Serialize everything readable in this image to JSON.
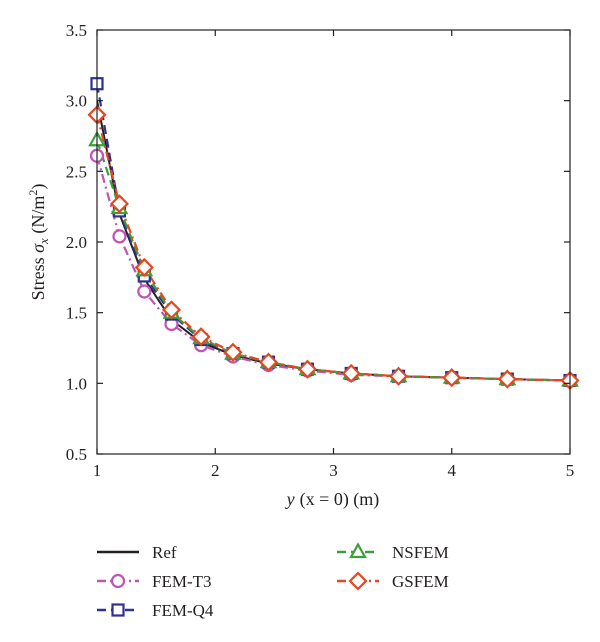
{
  "chart_data": {
    "type": "line",
    "xlabel": {
      "var": "y",
      "paren": "(x = 0) (m)"
    },
    "ylabel": {
      "pre": "Stress ",
      "sigma": "σ",
      "sub": "x",
      "unit_open": " (N/m",
      "sup": "2",
      "unit_close": ")"
    },
    "xlim": [
      1,
      5
    ],
    "ylim": [
      0.5,
      3.5
    ],
    "x_ticks": [
      1,
      2,
      3,
      4,
      5
    ],
    "y_ticks": [
      0.5,
      1.0,
      1.5,
      2.0,
      2.5,
      3.0,
      3.5
    ],
    "x_tick_labels": [
      "1",
      "2",
      "3",
      "4",
      "5"
    ],
    "y_tick_labels": [
      "0.5",
      "1.0",
      "1.5",
      "2.0",
      "2.5",
      "3.0",
      "3.5"
    ],
    "grid": false,
    "legend_position": "below",
    "x": [
      1.0,
      1.19,
      1.4,
      1.63,
      1.88,
      2.15,
      2.45,
      2.78,
      3.15,
      3.55,
      4.0,
      4.47,
      5.0
    ],
    "series": [
      {
        "name": "Ref",
        "color": "#231f20",
        "dash": "solid",
        "marker": "none",
        "values": [
          3.0,
          2.2,
          1.74,
          1.45,
          1.29,
          1.2,
          1.14,
          1.1,
          1.07,
          1.05,
          1.04,
          1.03,
          1.02
        ]
      },
      {
        "name": "FEM-T3",
        "color": "#c054b4",
        "dash": "dashdot",
        "marker": "circle",
        "values": [
          2.61,
          2.04,
          1.65,
          1.42,
          1.27,
          1.19,
          1.13,
          1.09,
          1.06,
          1.05,
          1.04,
          1.03,
          1.02
        ]
      },
      {
        "name": "FEM-Q4",
        "color": "#2e3192",
        "dash": "dash",
        "marker": "square",
        "values": [
          3.12,
          2.22,
          1.76,
          1.49,
          1.31,
          1.21,
          1.15,
          1.1,
          1.07,
          1.05,
          1.04,
          1.03,
          1.02
        ]
      },
      {
        "name": "NSFEM",
        "color": "#3aa03c",
        "dash": "dash",
        "marker": "triangle",
        "values": [
          2.72,
          2.24,
          1.8,
          1.5,
          1.32,
          1.21,
          1.15,
          1.1,
          1.07,
          1.05,
          1.04,
          1.03,
          1.02
        ]
      },
      {
        "name": "GSFEM",
        "color": "#e8461c",
        "dash": "dashdot",
        "marker": "diamond",
        "values": [
          2.9,
          2.27,
          1.82,
          1.52,
          1.33,
          1.22,
          1.15,
          1.1,
          1.07,
          1.05,
          1.04,
          1.03,
          1.02
        ]
      }
    ],
    "legend": [
      {
        "label": "Ref",
        "series": 0
      },
      {
        "label": "FEM-T3",
        "series": 1
      },
      {
        "label": "FEM-Q4",
        "series": 2
      },
      {
        "label": "NSFEM",
        "series": 3
      },
      {
        "label": "GSFEM",
        "series": 4
      }
    ]
  }
}
